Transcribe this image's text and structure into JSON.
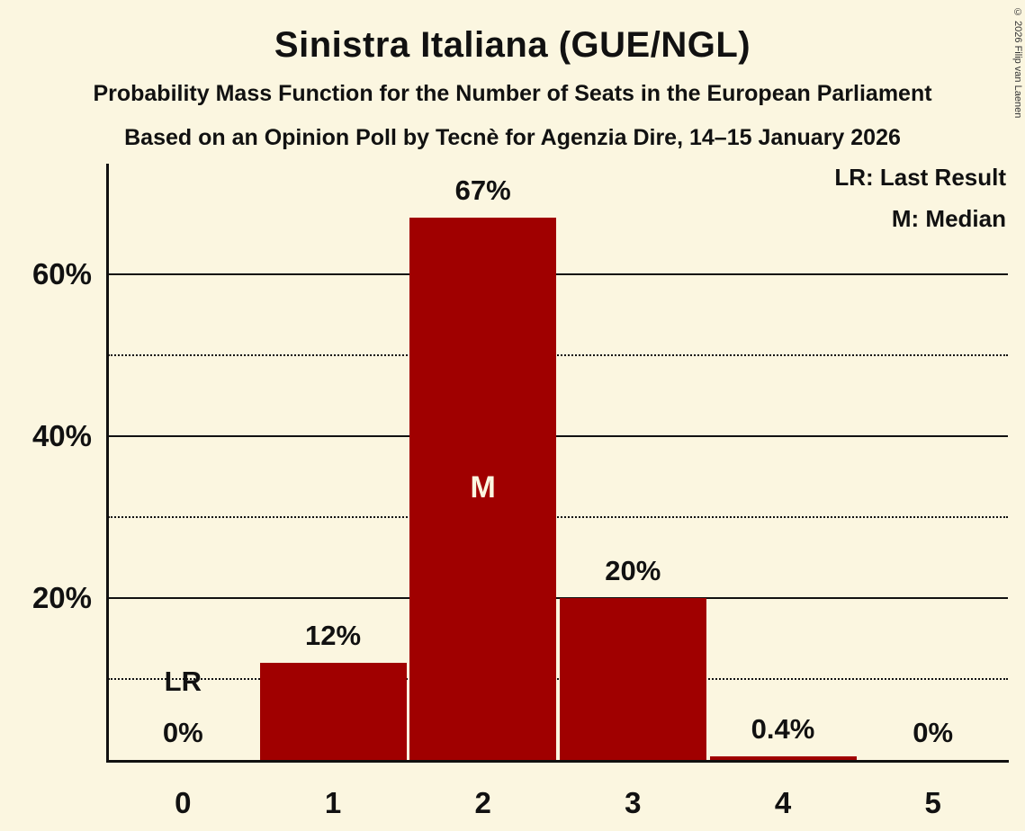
{
  "title": "Sinistra Italiana (GUE/NGL)",
  "subtitle1": "Probability Mass Function for the Number of Seats in the European Parliament",
  "subtitle2": "Based on an Opinion Poll by Tecnè for Agenzia Dire, 14–15 January 2026",
  "copyright": "© 2026 Filip van Laenen",
  "legend": {
    "lr": "LR: Last Result",
    "m": "M: Median"
  },
  "chart_data": {
    "type": "bar",
    "title": "Sinistra Italiana (GUE/NGL)",
    "xlabel": "Number of Seats",
    "ylabel": "Probability",
    "categories": [
      "0",
      "1",
      "2",
      "3",
      "4",
      "5"
    ],
    "values": [
      0,
      12,
      67,
      20,
      0.4,
      0
    ],
    "bar_labels": [
      "0%",
      "12%",
      "67%",
      "20%",
      "0.4%",
      "0%"
    ],
    "y_tick_labels": [
      "20%",
      "40%",
      "60%"
    ],
    "solid_gridlines_pct": [
      20,
      40,
      60
    ],
    "dotted_gridlines_pct": [
      10,
      30,
      50
    ],
    "ylim": [
      0,
      73
    ],
    "annotations": {
      "last_result_category_index": 0,
      "last_result_label": "LR",
      "median_category_index": 2,
      "median_label": "M"
    },
    "colors": {
      "bar": "#a00000",
      "background": "#fbf6e0",
      "text": "#111111",
      "median_text": "#fbf6e0"
    },
    "legend_position": "top-right",
    "grid": true
  }
}
